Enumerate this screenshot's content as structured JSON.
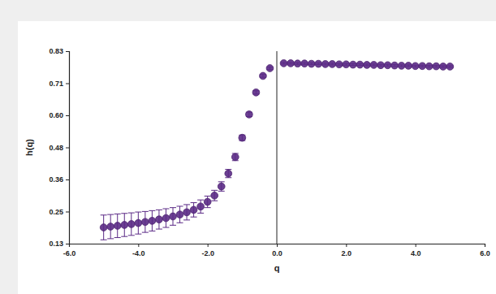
{
  "chart_data": {
    "type": "scatter",
    "x_label": "q",
    "y_label": "h(q)",
    "x": [
      -5.0,
      -4.8,
      -4.6,
      -4.4,
      -4.2,
      -4.0,
      -3.8,
      -3.6,
      -3.4,
      -3.2,
      -3.0,
      -2.8,
      -2.6,
      -2.4,
      -2.2,
      -2.0,
      -1.8,
      -1.6,
      -1.4,
      -1.2,
      -1.0,
      -0.8,
      -0.6,
      -0.4,
      -0.2,
      0.2,
      0.4,
      0.6,
      0.8,
      1.0,
      1.2,
      1.4,
      1.6,
      1.8,
      2.0,
      2.2,
      2.4,
      2.6,
      2.8,
      3.0,
      3.2,
      3.4,
      3.6,
      3.8,
      4.0,
      4.2,
      4.4,
      4.6,
      4.8,
      5.0
    ],
    "series": [
      {
        "color": "#5b2a86",
        "marker": "circle",
        "values": [
          0.189,
          0.192,
          0.195,
          0.198,
          0.201,
          0.205,
          0.209,
          0.213,
          0.218,
          0.223,
          0.229,
          0.236,
          0.244,
          0.253,
          0.265,
          0.282,
          0.305,
          0.338,
          0.385,
          0.445,
          0.515,
          0.6,
          0.68,
          0.74,
          0.768,
          0.786,
          0.786,
          0.785,
          0.785,
          0.784,
          0.784,
          0.783,
          0.783,
          0.782,
          0.782,
          0.781,
          0.781,
          0.78,
          0.78,
          0.779,
          0.779,
          0.778,
          0.777,
          0.777,
          0.776,
          0.776,
          0.775,
          0.775,
          0.774,
          0.774
        ],
        "errors": [
          0.045,
          0.044,
          0.043,
          0.042,
          0.041,
          0.04,
          0.038,
          0.037,
          0.035,
          0.034,
          0.032,
          0.03,
          0.028,
          0.026,
          0.024,
          0.021,
          0.019,
          0.017,
          0.015,
          0.013,
          0.01,
          0.008,
          0.006,
          0.005,
          0.004,
          0.003,
          0.003,
          0.003,
          0.003,
          0.003,
          0.003,
          0.003,
          0.003,
          0.003,
          0.003,
          0.003,
          0.003,
          0.003,
          0.003,
          0.003,
          0.003,
          0.003,
          0.003,
          0.003,
          0.003,
          0.003,
          0.003,
          0.003,
          0.003,
          0.003
        ]
      }
    ],
    "xlim": [
      -6,
      6
    ],
    "xticks": [
      {
        "value": -6,
        "label": "-6.0"
      },
      {
        "value": -4,
        "label": "-4.0"
      },
      {
        "value": -2,
        "label": "-2.0"
      },
      {
        "value": 0,
        "label": "0.0"
      },
      {
        "value": 2,
        "label": "2.0"
      },
      {
        "value": 4,
        "label": "4.0"
      },
      {
        "value": 6,
        "label": "6.0"
      }
    ],
    "ylim": [
      0.13,
      0.83
    ],
    "yticks": [
      0.13,
      {
        "value": 0.2467,
        "label": "0.25"
      },
      {
        "value": 0.3633,
        "label": "0.36"
      },
      0.48,
      {
        "value": 0.5967,
        "label": "0.60"
      },
      {
        "value": 0.7133,
        "label": "0.71"
      },
      0.83
    ],
    "grid": false
  }
}
